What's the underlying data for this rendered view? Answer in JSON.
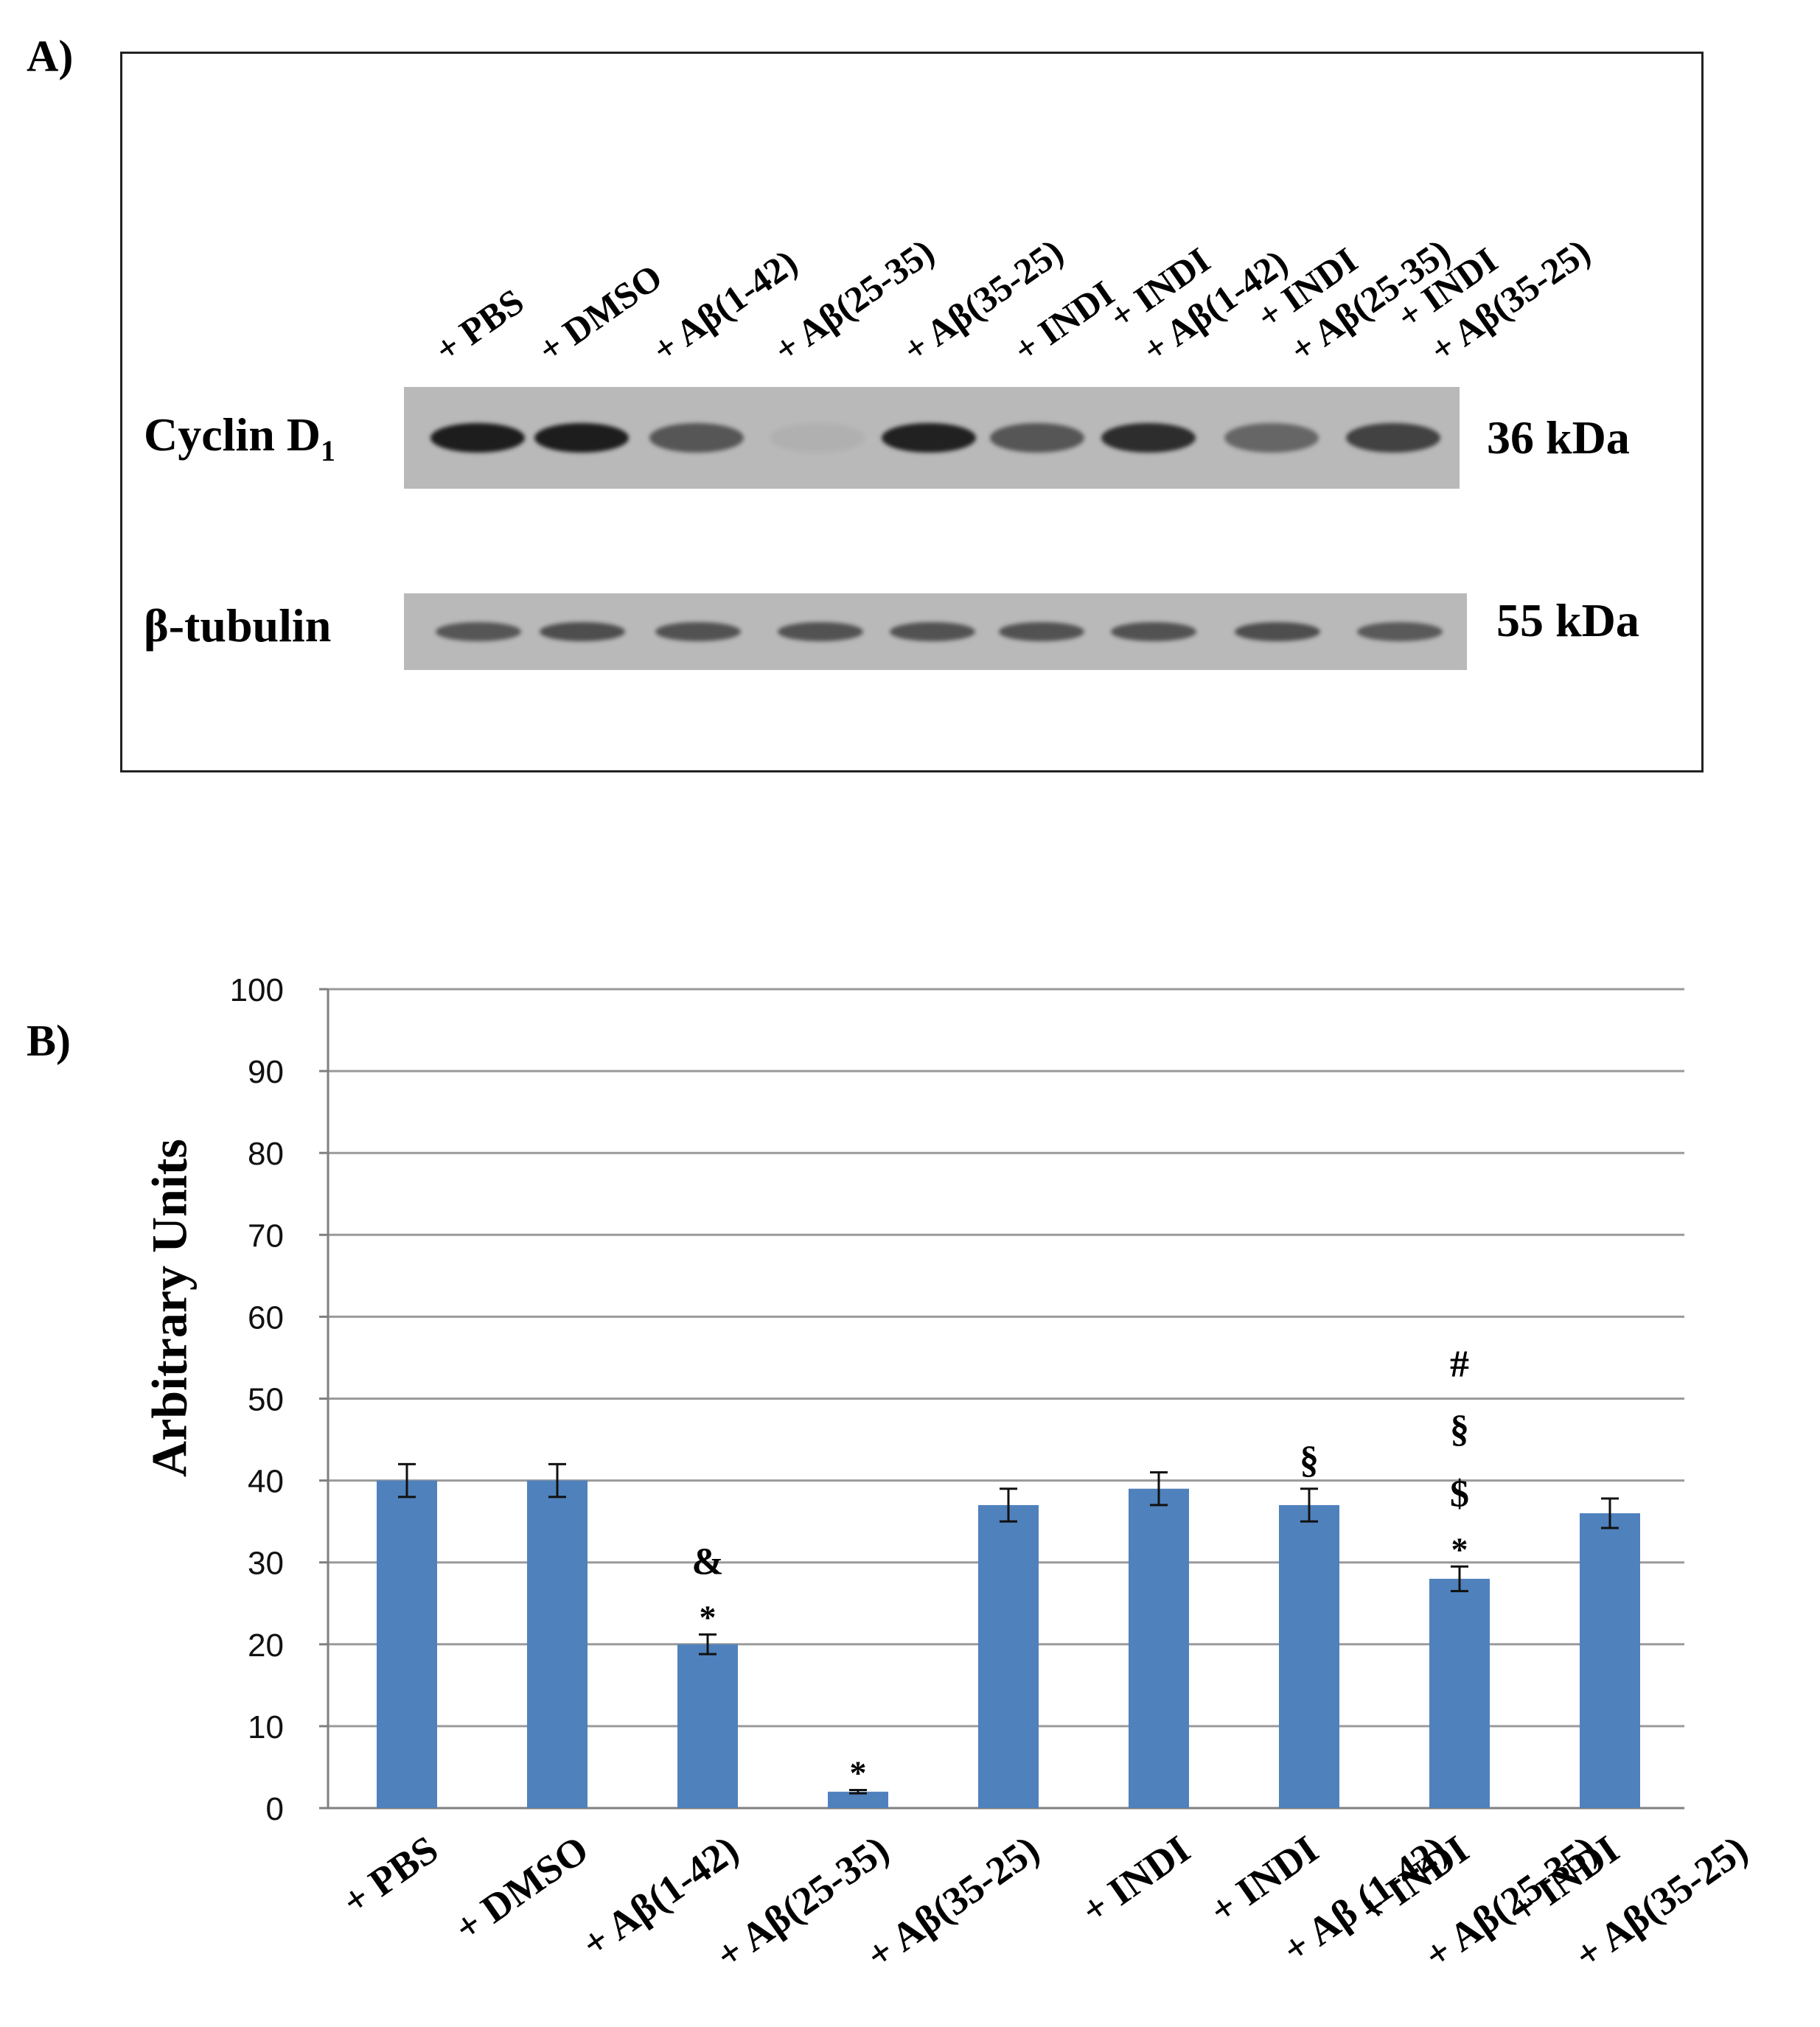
{
  "panel_a": {
    "label": "A)",
    "lanes": [
      "+ PBS",
      "+ DMSO",
      "+ Aβ(1-42)",
      "+ Aβ(25-35)",
      "+ Aβ(35-25)",
      "+ INDI",
      "+ INDI",
      "+ Aβ(1-42)",
      "+ INDI",
      "+ Aβ(25-35)",
      "+ INDI",
      "+ Aβ(35-25)"
    ],
    "rows": [
      {
        "name": "Cyclin D",
        "subscript": "1",
        "mw": "36 kDa",
        "band_intensity": [
          0.95,
          0.95,
          0.6,
          0.05,
          0.92,
          0.6,
          0.85,
          0.5,
          0.72
        ]
      },
      {
        "name": "β-tubulin",
        "subscript": "",
        "mw": "55 kDa",
        "band_intensity": [
          0.6,
          0.65,
          0.62,
          0.62,
          0.62,
          0.62,
          0.62,
          0.65,
          0.58
        ]
      }
    ]
  },
  "panel_b": {
    "label": "B)"
  },
  "chart_data": {
    "type": "bar",
    "ylabel": "Arbitrary Units",
    "ylim": [
      0,
      100
    ],
    "yticks": [
      0,
      10,
      20,
      30,
      40,
      50,
      60,
      70,
      80,
      90,
      100
    ],
    "grid": true,
    "bar_color": "#4f81bd",
    "categories": [
      {
        "line1": "+ PBS",
        "line2": ""
      },
      {
        "line1": "+ DMSO",
        "line2": ""
      },
      {
        "line1": "+ Aβ(1-42)",
        "line2": ""
      },
      {
        "line1": "+ Aβ(25-35)",
        "line2": ""
      },
      {
        "line1": "+ Aβ(35-25)",
        "line2": ""
      },
      {
        "line1": "+ INDI",
        "line2": ""
      },
      {
        "line1": "+ INDI",
        "line2": "+  Aβ (1-42)"
      },
      {
        "line1": "+ INDI",
        "line2": "+  Aβ(25-35)"
      },
      {
        "line1": "+ INDI",
        "line2": "+  Aβ(35-25)"
      }
    ],
    "values": [
      40,
      40,
      20,
      2,
      37,
      39,
      37,
      28,
      36
    ],
    "errors": [
      2,
      2,
      1.2,
      0.2,
      2,
      2,
      2,
      1.5,
      1.8
    ],
    "annotations": [
      [],
      [],
      [
        "*",
        "&"
      ],
      [
        "*"
      ],
      [],
      [],
      [
        "§"
      ],
      [
        "*",
        "$",
        "§",
        "#"
      ],
      []
    ]
  }
}
